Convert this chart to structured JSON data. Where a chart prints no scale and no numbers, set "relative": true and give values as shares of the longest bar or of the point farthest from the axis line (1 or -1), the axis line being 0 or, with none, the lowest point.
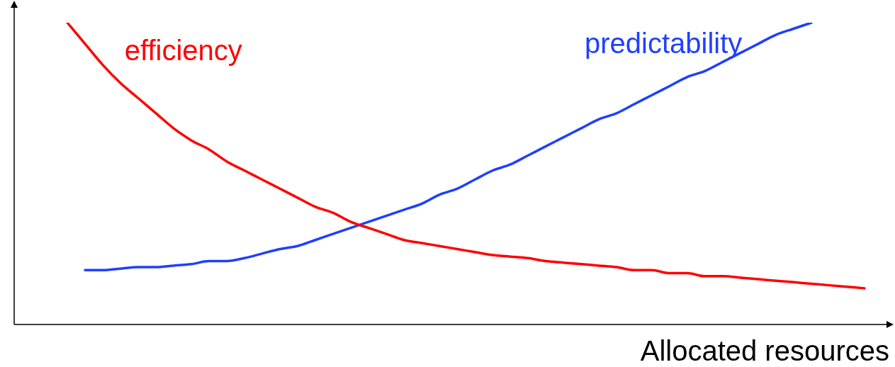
{
  "chart_data": {
    "type": "line",
    "relative": true,
    "xlabel": "Allocated resources",
    "legend": false,
    "marker": "none",
    "line_style": "solid",
    "categories": [
      null,
      null,
      null,
      null,
      null,
      null,
      null,
      null,
      null,
      null,
      null,
      null,
      null,
      null,
      null,
      null,
      null,
      null,
      null,
      null,
      null,
      null,
      null,
      null,
      null,
      null,
      null,
      null,
      null,
      null,
      null,
      null,
      null,
      null,
      null,
      null,
      null,
      null,
      null,
      null,
      null,
      null,
      null,
      null,
      null,
      null,
      null,
      null,
      null,
      null
    ],
    "series": [
      {
        "name": "efficiency",
        "color": "#ff0000",
        "values": [
          null,
          null,
          null,
          1.0,
          0.93,
          0.86,
          0.8,
          0.75,
          0.7,
          0.65,
          0.61,
          0.58,
          0.54,
          0.51,
          0.48,
          0.45,
          0.42,
          0.39,
          0.37,
          0.34,
          0.32,
          0.3,
          0.28,
          0.27,
          0.26,
          0.25,
          0.24,
          0.23,
          0.225,
          0.22,
          0.21,
          0.205,
          0.2,
          0.195,
          0.19,
          0.18,
          0.18,
          0.17,
          0.17,
          0.16,
          0.16,
          0.155,
          0.15,
          0.145,
          0.14,
          0.135,
          0.13,
          0.125,
          0.12,
          null
        ]
      },
      {
        "name": "predictability",
        "color": "#1f3fff",
        "values": [
          null,
          null,
          null,
          null,
          0.18,
          0.18,
          0.185,
          0.19,
          0.19,
          0.195,
          0.2,
          0.21,
          0.21,
          0.22,
          0.235,
          0.25,
          0.26,
          0.28,
          0.3,
          0.32,
          0.34,
          0.36,
          0.38,
          0.4,
          0.43,
          0.45,
          0.48,
          0.51,
          0.53,
          0.56,
          0.59,
          0.62,
          0.65,
          0.68,
          0.7,
          0.73,
          0.76,
          0.79,
          0.82,
          0.84,
          0.87,
          0.9,
          0.93,
          0.96,
          0.98,
          1.0,
          null,
          null,
          null,
          null
        ]
      }
    ]
  }
}
